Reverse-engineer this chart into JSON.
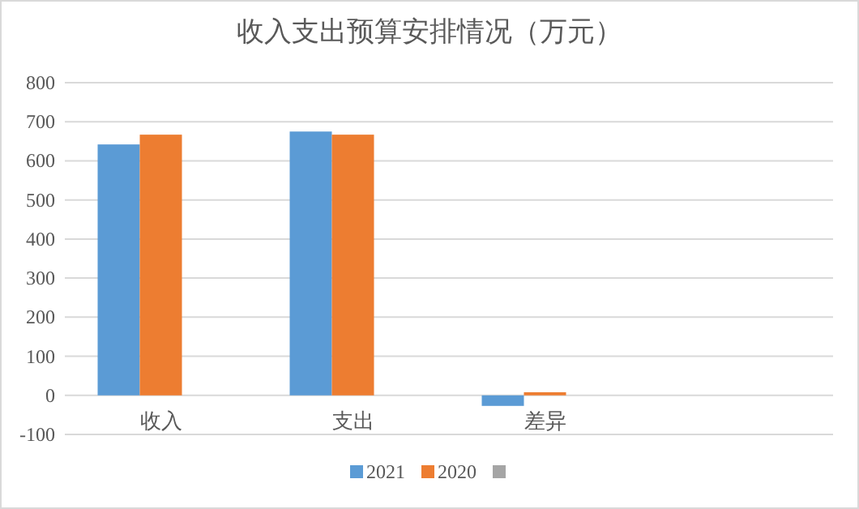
{
  "chart_data": {
    "type": "bar",
    "title": "收入支出预算安排情况（万元）",
    "categories": [
      "收入",
      "支出",
      "差异",
      null
    ],
    "series": [
      {
        "name": "2021",
        "color": "#5b9bd5",
        "values": [
          642,
          675,
          -27,
          null
        ]
      },
      {
        "name": "2020",
        "color": "#ed7d31",
        "values": [
          667,
          667,
          8,
          null
        ]
      },
      {
        "color": "#a5a5a5",
        "values": [
          null,
          null,
          null,
          null
        ]
      }
    ],
    "ylim": [
      -100,
      800
    ],
    "yticks": [
      -100,
      0,
      100,
      200,
      300,
      400,
      500,
      600,
      700,
      800
    ],
    "grid": "y",
    "legend": "bottom"
  }
}
